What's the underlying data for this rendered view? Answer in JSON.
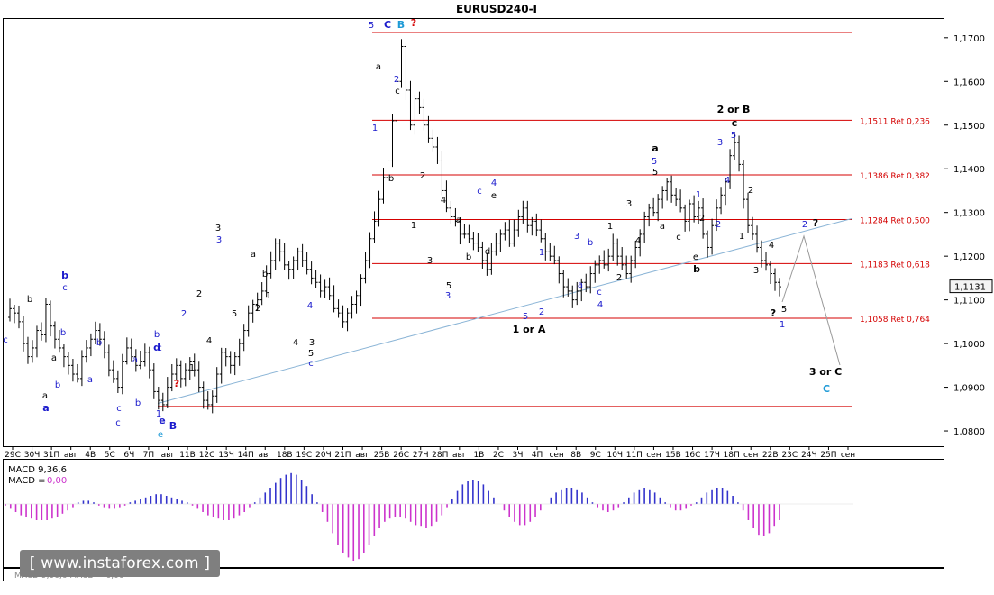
{
  "window_title": "EURUSD240-I",
  "chart_data": {
    "type": "candlestick",
    "symbol": "EURUSD",
    "timeframe": "H4",
    "ylim": [
      1.0765,
      1.1745
    ],
    "y_ticks": [
      "1,1700",
      "1,1600",
      "1,1500",
      "1,1400",
      "1,1300",
      "1,1200",
      "1,1100",
      "1,1000",
      "1,0900",
      "1,0800"
    ],
    "y_tick_values": [
      1.17,
      1.16,
      1.15,
      1.14,
      1.13,
      1.12,
      1.11,
      1.1,
      1.09,
      1.08
    ],
    "current_price": "1,1131",
    "current_price_value": 1.1131,
    "x_ticks": [
      "29С",
      "30Ч",
      "31П",
      "авг",
      "4В",
      "5С",
      "6Ч",
      "7П",
      "авг",
      "11В",
      "12С",
      "13Ч",
      "14П",
      "авг",
      "18В",
      "19С",
      "20Ч",
      "21П",
      "авг",
      "25В",
      "26С",
      "27Ч",
      "28П",
      "авг",
      "1В",
      "2С",
      "3Ч",
      "4П",
      "сен",
      "8В",
      "9С",
      "10Ч",
      "11П",
      "сен",
      "15В",
      "16С",
      "17Ч",
      "18П",
      "сен",
      "22В",
      "23С",
      "24Ч",
      "25П",
      "сен"
    ],
    "close_path": [
      1.106,
      1.108,
      1.107,
      1.105,
      1.1,
      1.097,
      1.099,
      1.103,
      1.102,
      1.109,
      1.104,
      1.101,
      1.099,
      1.097,
      1.095,
      1.093,
      1.092,
      1.097,
      1.099,
      1.101,
      1.103,
      1.101,
      1.098,
      1.094,
      1.092,
      1.09,
      1.096,
      1.099,
      1.097,
      1.095,
      1.096,
      1.098,
      1.094,
      1.089,
      1.087,
      1.086,
      1.09,
      1.093,
      1.095,
      1.092,
      1.094,
      1.096,
      1.094,
      1.09,
      1.087,
      1.086,
      1.088,
      1.093,
      1.098,
      1.097,
      1.095,
      1.097,
      1.1,
      1.103,
      1.107,
      1.109,
      1.11,
      1.112,
      1.116,
      1.119,
      1.123,
      1.121,
      1.118,
      1.117,
      1.119,
      1.121,
      1.119,
      1.117,
      1.115,
      1.114,
      1.112,
      1.113,
      1.111,
      1.108,
      1.107,
      1.105,
      1.107,
      1.109,
      1.111,
      1.115,
      1.119,
      1.124,
      1.128,
      1.133,
      1.138,
      1.142,
      1.151,
      1.16,
      1.168,
      1.158,
      1.15,
      1.156,
      1.154,
      1.15,
      1.147,
      1.145,
      1.142,
      1.135,
      1.131,
      1.129,
      1.128,
      1.125,
      1.125,
      1.124,
      1.123,
      1.122,
      1.119,
      1.117,
      1.121,
      1.123,
      1.125,
      1.126,
      1.123,
      1.126,
      1.129,
      1.131,
      1.127,
      1.128,
      1.126,
      1.124,
      1.121,
      1.12,
      1.119,
      1.116,
      1.113,
      1.112,
      1.11,
      1.112,
      1.114,
      1.113,
      1.116,
      1.118,
      1.119,
      1.118,
      1.12,
      1.123,
      1.12,
      1.118,
      1.116,
      1.119,
      1.122,
      1.125,
      1.129,
      1.131,
      1.13,
      1.133,
      1.135,
      1.137,
      1.134,
      1.133,
      1.131,
      1.128,
      1.132,
      1.129,
      1.131,
      1.125,
      1.122,
      1.127,
      1.131,
      1.134,
      1.137,
      1.143,
      1.146,
      1.141,
      1.133,
      1.127,
      1.125,
      1.122,
      1.119,
      1.118,
      1.116,
      1.114,
      1.113
    ],
    "retracement_levels": [
      {
        "value": 1.1511,
        "label": "1,1511 Ret 0,236"
      },
      {
        "value": 1.1386,
        "label": "1,1386 Ret 0,382"
      },
      {
        "value": 1.1284,
        "label": "1,1284 Ret 0,500"
      },
      {
        "value": 1.1183,
        "label": "1,1183 Ret 0,618"
      },
      {
        "value": 1.1058,
        "label": "1,1058 Ret 0,764"
      }
    ],
    "extreme_lines": [
      1.1712,
      1.0856
    ],
    "wave_labels": [
      {
        "text": "5",
        "color": "#1a1acc",
        "bold": false
      },
      {
        "text": "C",
        "color": "#1a1acc",
        "bold": true
      },
      {
        "text": "B",
        "color": "#1e9ad6",
        "bold": true
      },
      {
        "text": "?",
        "color": "#d40000",
        "bold": true
      },
      {
        "text": "a",
        "color": "#000000",
        "bold": false
      },
      {
        "text": "2",
        "color": "#1a1acc",
        "bold": false
      },
      {
        "text": "c",
        "color": "#000000",
        "bold": false
      },
      {
        "text": "1",
        "color": "#1a1acc",
        "bold": false
      },
      {
        "text": "b",
        "color": "#000000",
        "bold": false
      },
      {
        "text": "2",
        "color": "#000000",
        "bold": false
      },
      {
        "text": "1",
        "color": "#000000",
        "bold": false
      },
      {
        "text": "4",
        "color": "#000000",
        "bold": false
      },
      {
        "text": "a",
        "color": "#000000",
        "bold": false
      },
      {
        "text": "b",
        "color": "#000000",
        "bold": false
      },
      {
        "text": "c",
        "color": "#1a1acc",
        "bold": false
      },
      {
        "text": "4",
        "color": "#1a1acc",
        "bold": false
      },
      {
        "text": "e",
        "color": "#000000",
        "bold": false
      },
      {
        "text": "d",
        "color": "#000000",
        "bold": false
      },
      {
        "text": "3",
        "color": "#000000",
        "bold": false
      },
      {
        "text": "5",
        "color": "#000000",
        "bold": false
      },
      {
        "text": "3",
        "color": "#1a1acc",
        "bold": false
      },
      {
        "text": "5",
        "color": "#1a1acc",
        "bold": false
      },
      {
        "text": "2",
        "color": "#1a1acc",
        "bold": false
      },
      {
        "text": "1",
        "color": "#1a1acc",
        "bold": false
      },
      {
        "text": "1 or A",
        "color": "#000000",
        "bold": true
      },
      {
        "text": "3",
        "color": "#1a1acc",
        "bold": false
      },
      {
        "text": "b",
        "color": "#1a1acc",
        "bold": false
      },
      {
        "text": "a",
        "color": "#1a1acc",
        "bold": false
      },
      {
        "text": "c",
        "color": "#1a1acc",
        "bold": false
      },
      {
        "text": "4",
        "color": "#1a1acc",
        "bold": false
      },
      {
        "text": "2",
        "color": "#000000",
        "bold": false
      },
      {
        "text": "1",
        "color": "#000000",
        "bold": false
      },
      {
        "text": "3",
        "color": "#000000",
        "bold": false
      },
      {
        "text": "4",
        "color": "#000000",
        "bold": false
      },
      {
        "text": "a",
        "color": "#000000",
        "bold": true
      },
      {
        "text": "5",
        "color": "#1a1acc",
        "bold": false
      },
      {
        "text": "5",
        "color": "#000000",
        "bold": false
      },
      {
        "text": "c",
        "color": "#000000",
        "bold": false
      },
      {
        "text": "a",
        "color": "#000000",
        "bold": false
      },
      {
        "text": "1",
        "color": "#1a1acc",
        "bold": false
      },
      {
        "text": "2",
        "color": "#000000",
        "bold": false
      },
      {
        "text": "e",
        "color": "#000000",
        "bold": false
      },
      {
        "text": "b",
        "color": "#000000",
        "bold": true
      },
      {
        "text": "2 or B",
        "color": "#000000",
        "bold": true
      },
      {
        "text": "c",
        "color": "#000000",
        "bold": true
      },
      {
        "text": "5",
        "color": "#1a1acc",
        "bold": false
      },
      {
        "text": "3",
        "color": "#1a1acc",
        "bold": false
      },
      {
        "text": "4",
        "color": "#1a1acc",
        "bold": false
      },
      {
        "text": "2",
        "color": "#1a1acc",
        "bold": false
      },
      {
        "text": "2",
        "color": "#000000",
        "bold": false
      },
      {
        "text": "1",
        "color": "#000000",
        "bold": false
      },
      {
        "text": "3",
        "color": "#000000",
        "bold": false
      },
      {
        "text": "4",
        "color": "#000000",
        "bold": false
      },
      {
        "text": "5",
        "color": "#000000",
        "bold": false
      },
      {
        "text": "?",
        "color": "#000000",
        "bold": true
      },
      {
        "text": "1",
        "color": "#1a1acc",
        "bold": false
      },
      {
        "text": "2",
        "color": "#1a1acc",
        "bold": false
      },
      {
        "text": "?",
        "color": "#000000",
        "bold": true
      },
      {
        "text": "3 or C",
        "color": "#000000",
        "bold": true
      },
      {
        "text": "C",
        "color": "#1e9ad6",
        "bold": true
      },
      {
        "text": "b",
        "color": "#1a1acc",
        "bold": true
      },
      {
        "text": "c",
        "color": "#1a1acc",
        "bold": false
      },
      {
        "text": "b",
        "color": "#1a1acc",
        "bold": false
      },
      {
        "text": "a",
        "color": "#1a1acc",
        "bold": true
      },
      {
        "text": "b",
        "color": "#1a1acc",
        "bold": false
      },
      {
        "text": "a",
        "color": "#1a1acc",
        "bold": false
      },
      {
        "text": "b",
        "color": "#1a1acc",
        "bold": false
      },
      {
        "text": "c",
        "color": "#1a1acc",
        "bold": false
      },
      {
        "text": "b",
        "color": "#1a1acc",
        "bold": false
      },
      {
        "text": "a",
        "color": "#1a1acc",
        "bold": false
      },
      {
        "text": "a",
        "color": "#000000",
        "bold": false
      },
      {
        "text": "b",
        "color": "#000000",
        "bold": false
      },
      {
        "text": "c",
        "color": "#1a1acc",
        "bold": false
      },
      {
        "text": "a",
        "color": "#000000",
        "bold": false
      },
      {
        "text": "c",
        "color": "#1a1acc",
        "bold": false
      },
      {
        "text": "b",
        "color": "#1a1acc",
        "bold": false
      },
      {
        "text": "d",
        "color": "#1a1acc",
        "bold": true
      },
      {
        "text": "c",
        "color": "#1a1acc",
        "bold": false
      },
      {
        "text": "1",
        "color": "#1a1acc",
        "bold": false
      },
      {
        "text": "e",
        "color": "#1a1acc",
        "bold": true
      },
      {
        "text": "e",
        "color": "#1e9ad6",
        "bold": false
      },
      {
        "text": "B",
        "color": "#1a1acc",
        "bold": true
      },
      {
        "text": "?",
        "color": "#d40000",
        "bold": true
      },
      {
        "text": "2",
        "color": "#1a1acc",
        "bold": false
      },
      {
        "text": "1",
        "color": "#000000",
        "bold": false
      },
      {
        "text": "2",
        "color": "#000000",
        "bold": false
      },
      {
        "text": "4",
        "color": "#000000",
        "bold": false
      },
      {
        "text": "3",
        "color": "#000000",
        "bold": false
      },
      {
        "text": "3",
        "color": "#1a1acc",
        "bold": false
      },
      {
        "text": "5",
        "color": "#000000",
        "bold": false
      },
      {
        "text": "a",
        "color": "#000000",
        "bold": false
      },
      {
        "text": "b",
        "color": "#000000",
        "bold": false
      },
      {
        "text": "2",
        "color": "#000000",
        "bold": false
      },
      {
        "text": "1",
        "color": "#000000",
        "bold": false
      },
      {
        "text": "4",
        "color": "#000000",
        "bold": false
      },
      {
        "text": "3",
        "color": "#000000",
        "bold": false
      },
      {
        "text": "5",
        "color": "#000000",
        "bold": false
      },
      {
        "text": "c",
        "color": "#1a1acc",
        "bold": false
      },
      {
        "text": "4",
        "color": "#1a1acc",
        "bold": false
      },
      {
        "text": "4",
        "color": "#000000",
        "bold": false
      }
    ],
    "colors": {
      "retracement": "#d40000",
      "trendline": "#8ab4d6",
      "macd_pos": "#3333cc",
      "macd_neg": "#cc33cc",
      "candle": "#000000"
    },
    "macd": {
      "label": "MACD 9,36,6",
      "value_label": "MACD =",
      "value": "0,00",
      "histogram": [
        -0.1,
        -0.3,
        -0.5,
        -0.7,
        -0.8,
        -0.9,
        -1.0,
        -1.0,
        -1.0,
        -0.9,
        -0.8,
        -0.6,
        -0.4,
        -0.2,
        0.1,
        0.2,
        0.2,
        0.1,
        -0.1,
        -0.2,
        -0.3,
        -0.3,
        -0.2,
        -0.1,
        0.1,
        0.2,
        0.3,
        0.4,
        0.5,
        0.6,
        0.6,
        0.5,
        0.4,
        0.3,
        0.2,
        0.1,
        -0.1,
        -0.3,
        -0.5,
        -0.7,
        -0.8,
        -0.9,
        -1.0,
        -1.0,
        -0.9,
        -0.7,
        -0.5,
        -0.2,
        0.1,
        0.4,
        0.7,
        1.0,
        1.3,
        1.6,
        1.8,
        1.9,
        1.8,
        1.5,
        1.1,
        0.6,
        0.1,
        -0.5,
        -1.1,
        -1.8,
        -2.5,
        -3.0,
        -3.3,
        -3.5,
        -3.4,
        -3.0,
        -2.5,
        -2.0,
        -1.5,
        -1.1,
        -0.9,
        -0.8,
        -0.8,
        -0.9,
        -1.1,
        -1.3,
        -1.4,
        -1.5,
        -1.4,
        -1.1,
        -0.7,
        -0.2,
        0.3,
        0.8,
        1.2,
        1.4,
        1.5,
        1.4,
        1.2,
        0.8,
        0.4,
        0.0,
        -0.4,
        -0.8,
        -1.1,
        -1.3,
        -1.3,
        -1.1,
        -0.8,
        -0.4,
        0.0,
        0.4,
        0.7,
        0.9,
        1.0,
        1.0,
        0.9,
        0.7,
        0.4,
        0.1,
        -0.2,
        -0.4,
        -0.5,
        -0.4,
        -0.2,
        0.1,
        0.4,
        0.7,
        0.9,
        1.0,
        0.9,
        0.7,
        0.4,
        0.1,
        -0.2,
        -0.4,
        -0.4,
        -0.3,
        -0.1,
        0.1,
        0.4,
        0.7,
        0.9,
        1.0,
        1.0,
        0.8,
        0.5,
        0.1,
        -0.4,
        -1.0,
        -1.5,
        -1.9,
        -2.0,
        -1.8,
        -1.4,
        -1.0
      ]
    }
  },
  "watermark": "[ www.instaforex.com ]",
  "bottom_tab": "MACD 9,36,6 MACD = 0,00"
}
